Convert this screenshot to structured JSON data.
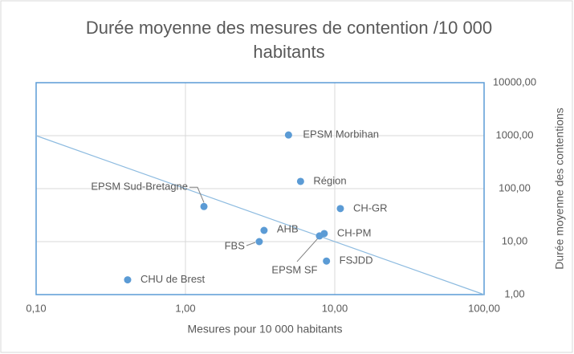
{
  "chart_data": {
    "type": "scatter",
    "title": "Durée moyenne des mesures de contention /10 000 habitants",
    "x_label": "Mesures pour 10 000 habitants",
    "y_label": "Durée moyenne des contentions",
    "xscale": "log",
    "yscale": "log",
    "xlim": [
      0.1,
      100
    ],
    "ylim": [
      1,
      10000
    ],
    "xticks": [
      {
        "value": 0.1,
        "label": "0,10"
      },
      {
        "value": 1,
        "label": "1,00"
      },
      {
        "value": 10,
        "label": "10,00"
      },
      {
        "value": 100,
        "label": "100,00"
      }
    ],
    "yticks": [
      {
        "value": 1,
        "label": "1,00"
      },
      {
        "value": 10,
        "label": "10,00"
      },
      {
        "value": 100,
        "label": "100,00"
      },
      {
        "value": 1000,
        "label": "1000,00"
      },
      {
        "value": 10000,
        "label": "10000,00"
      }
    ],
    "grid": true,
    "color": "#5b9bd5",
    "trend_color": "#8dbbe0",
    "labels": [
      "EPSM Morbihan",
      "Région",
      "CH-GR",
      "EPSM Sud-Bretagne",
      "AHB",
      "CH-PM",
      "EPSM SF",
      "FBS",
      "FSJDD",
      "CHU de Brest"
    ],
    "x": [
      4.9,
      5.9,
      10.9,
      1.33,
      3.36,
      8.5,
      7.9,
      3.12,
      8.8,
      0.41
    ],
    "values": [
      1030,
      137,
      42,
      46,
      16.3,
      14.2,
      12.8,
      10,
      4.3,
      1.9
    ],
    "trendline": {
      "x": [
        0.1,
        100
      ],
      "y": [
        1000,
        1
      ]
    }
  }
}
